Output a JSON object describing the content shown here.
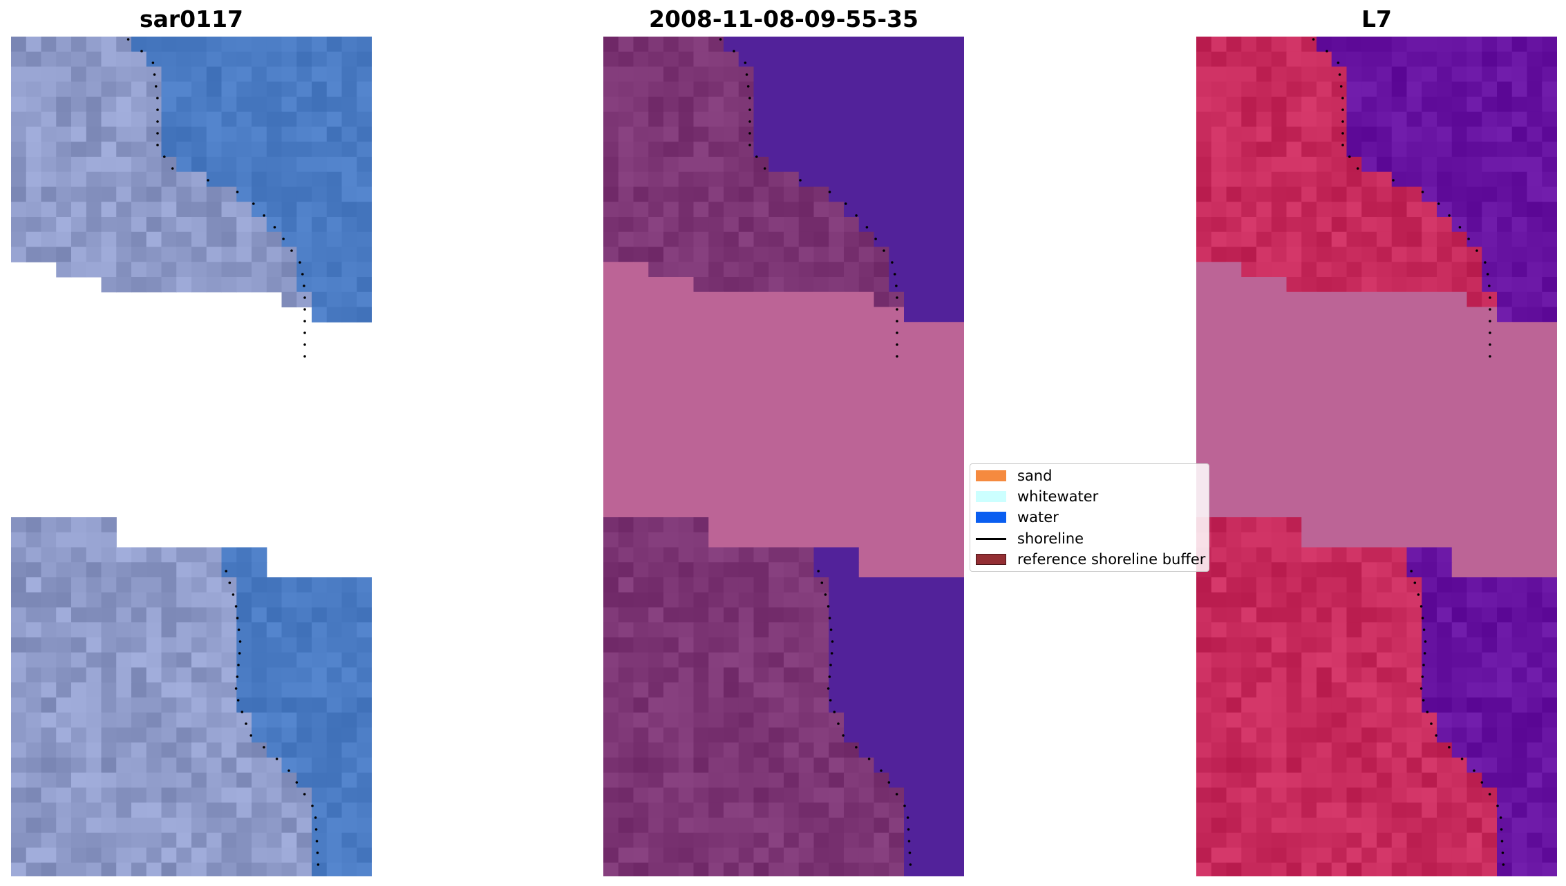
{
  "panels": [
    {
      "id": "rgb",
      "title": "sar0117"
    },
    {
      "id": "class",
      "title": "2008-11-08-09-55-35"
    },
    {
      "id": "index",
      "title": "L7"
    }
  ],
  "legend": {
    "items": [
      {
        "label": "sand",
        "color": "#f58a3f",
        "kind": "patch"
      },
      {
        "label": "whitewater",
        "color": "#ccffff",
        "kind": "patch"
      },
      {
        "label": "water",
        "color": "#0a5ef0",
        "kind": "patch"
      },
      {
        "label": "shoreline",
        "color": "#000000",
        "kind": "line"
      },
      {
        "label": "reference shoreline buffer",
        "color": "#932e33",
        "kind": "patch"
      }
    ]
  },
  "colors": {
    "masked": "#bc6496",
    "water_class": "#52229a",
    "sand_class": "#7c3574",
    "rgb_land": "#8e9ac8",
    "rgb_water": "#4a7bc3",
    "index_land": "#c72a5c",
    "index_water": "#6612a0"
  }
}
